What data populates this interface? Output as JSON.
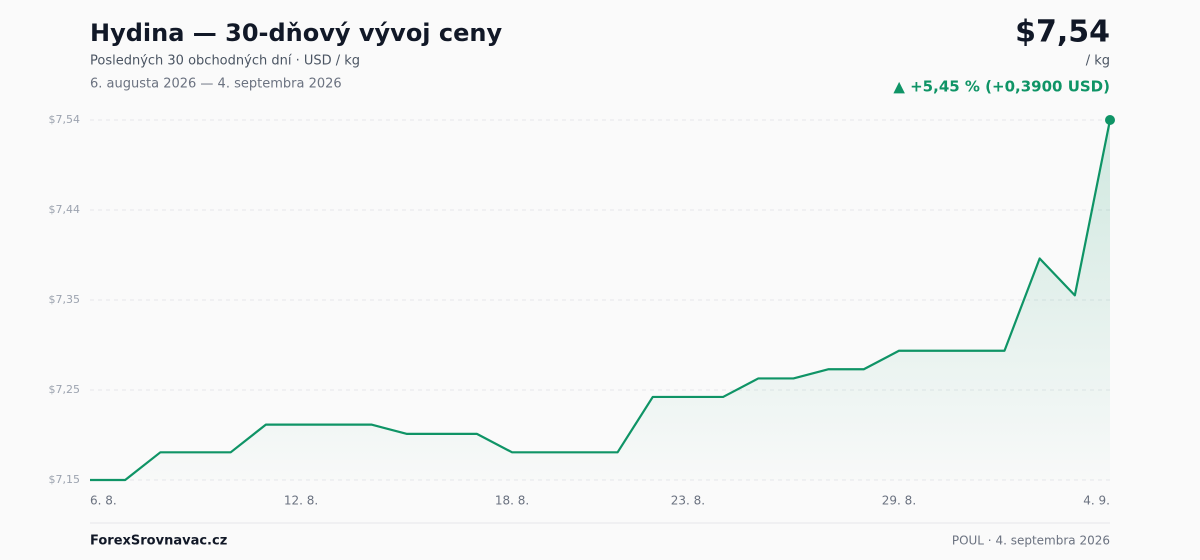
{
  "chart_data": {
    "type": "line",
    "title": "Hydina — 30-dňový vývoj ceny",
    "subtitle": "Posledných 30 obchodných dní · USD / kg",
    "date_range": "6. augusta 2026 — 4. septembra 2026",
    "price": "$7,54",
    "unit": "/ kg",
    "change": "▲ +5,45 % (+0,3900 USD)",
    "source": "ForexSrovnavac.cz",
    "footer": "POUL · 4. septembra 2026",
    "color": "#0f9466",
    "grid": true,
    "categories": [
      "6. 8.",
      null,
      null,
      null,
      null,
      null,
      "12. 8.",
      null,
      null,
      null,
      null,
      null,
      "18. 8.",
      null,
      null,
      null,
      null,
      "23. 8.",
      null,
      null,
      null,
      null,
      null,
      "29. 8.",
      null,
      null,
      null,
      null,
      null,
      "4. 9."
    ],
    "values": [
      7.15,
      7.15,
      7.18,
      7.18,
      7.18,
      7.21,
      7.21,
      7.21,
      7.21,
      7.2,
      7.2,
      7.2,
      7.18,
      7.18,
      7.18,
      7.18,
      7.24,
      7.24,
      7.24,
      7.26,
      7.26,
      7.27,
      7.27,
      7.29,
      7.29,
      7.29,
      7.29,
      7.39,
      7.35,
      7.54
    ],
    "ylim": [
      7.15,
      7.54
    ],
    "yticks": [
      {
        "value": 7.15,
        "label": "$7,15"
      },
      {
        "value": 7.2475,
        "label": "$7,25"
      },
      {
        "value": 7.345,
        "label": "$7,35"
      },
      {
        "value": 7.4425,
        "label": "$7,44"
      },
      {
        "value": 7.54,
        "label": "$7,54"
      }
    ]
  }
}
